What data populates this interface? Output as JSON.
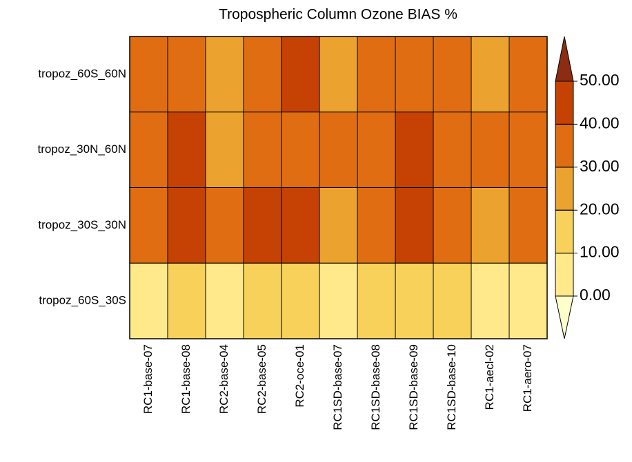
{
  "chart_data": {
    "type": "heatmap",
    "title": "Tropospheric Column Ozone BIAS %",
    "x_categories": [
      "RC1-base-07",
      "RC1-base-08",
      "RC2-base-04",
      "RC2-base-05",
      "RC2-oce-01",
      "RC1SD-base-07",
      "RC1SD-base-08",
      "RC1SD-base-09",
      "RC1SD-base-10",
      "RC1-aecl-02",
      "RC1-aero-07"
    ],
    "y_categories": [
      "tropoz_60S_60N",
      "tropoz_30N_60N",
      "tropoz_30S_30N",
      "tropoz_60S_30S"
    ],
    "values": [
      [
        35,
        35,
        27,
        35,
        43,
        27,
        35,
        35,
        35,
        27,
        35
      ],
      [
        35,
        43,
        27,
        35,
        35,
        35,
        35,
        43,
        35,
        35,
        35
      ],
      [
        35,
        43,
        35,
        43,
        43,
        25,
        35,
        43,
        35,
        25,
        35
      ],
      [
        7,
        13,
        7,
        13,
        13,
        6,
        13,
        13,
        13,
        8,
        8
      ]
    ],
    "levels": [
      {
        "value": 0,
        "label": "0.00"
      },
      {
        "value": 10,
        "label": "10.00"
      },
      {
        "value": 20,
        "label": "20.00"
      },
      {
        "value": 30,
        "label": "30.00"
      },
      {
        "value": 40,
        "label": "40.00"
      },
      {
        "value": 50,
        "label": "50.00"
      }
    ],
    "colors": [
      "#ffffcc",
      "#ffe98a",
      "#f8d15a",
      "#eca22e",
      "#e06d12",
      "#c54104",
      "#8c2c12"
    ]
  }
}
